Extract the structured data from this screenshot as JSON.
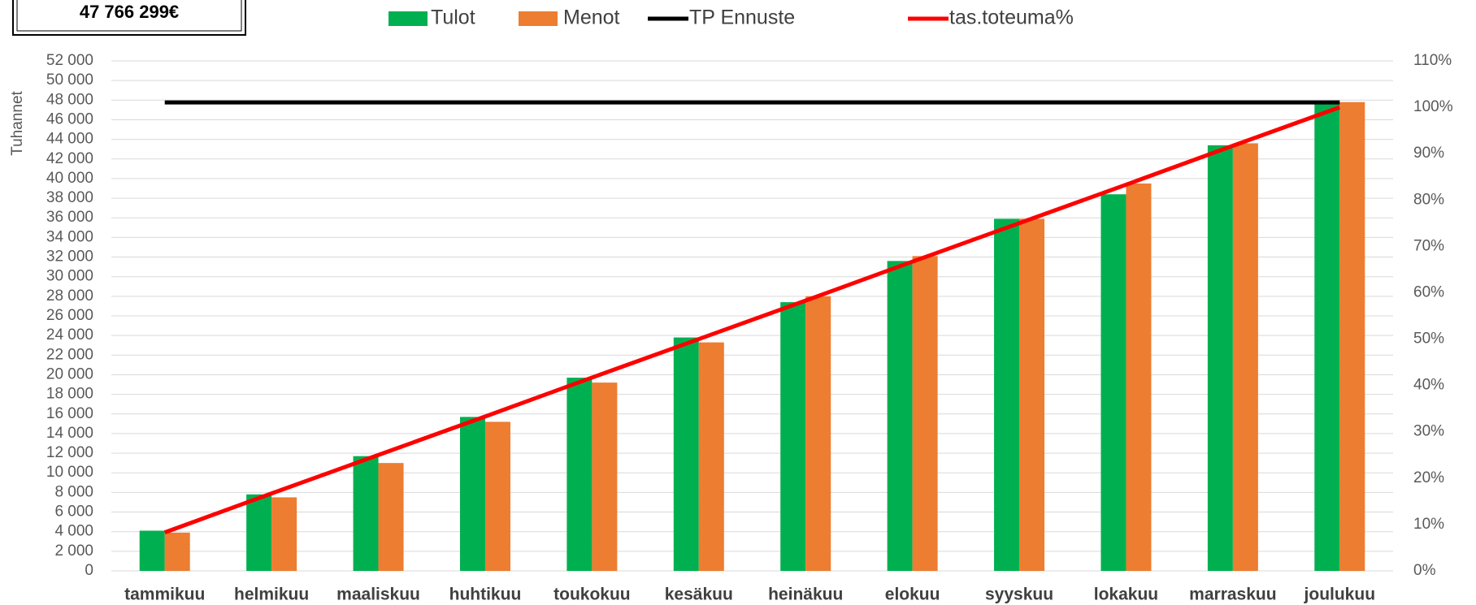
{
  "chart_data": {
    "type": "bar",
    "annotation": "47 766 299€",
    "y_label": "Tuhannet",
    "categories": [
      "tammikuu",
      "helmikuu",
      "maaliskuu",
      "huhtikuu",
      "toukokuu",
      "kesäkuu",
      "heinäkuu",
      "elokuu",
      "syyskuu",
      "lokakuu",
      "marraskuu",
      "joulukuu"
    ],
    "series": [
      {
        "name": "Tulot",
        "type": "bar",
        "color": "#00b050",
        "values": [
          4100,
          7800,
          11700,
          15700,
          19700,
          23800,
          27400,
          31600,
          35900,
          38400,
          43400,
          47800
        ]
      },
      {
        "name": "Menot",
        "type": "bar",
        "color": "#ed7d31",
        "values": [
          3900,
          7500,
          11000,
          15200,
          19200,
          23300,
          28000,
          32100,
          35900,
          39500,
          43600,
          47800
        ]
      },
      {
        "name": "TP Ennuste",
        "type": "line",
        "color": "#000000",
        "values": [
          47766,
          47766,
          47766,
          47766,
          47766,
          47766,
          47766,
          47766,
          47766,
          47766,
          47766,
          47766
        ]
      },
      {
        "name": "tas.toteuma%",
        "type": "line",
        "axis": "y2",
        "color": "#ff0000",
        "values": [
          8.3,
          16.7,
          25,
          33.3,
          41.7,
          50,
          58.3,
          66.7,
          75,
          83.3,
          91.7,
          100
        ]
      }
    ],
    "ylim": [
      0,
      52000
    ],
    "yticks": [
      0,
      {
        "value": 2000,
        "label": "2 000"
      },
      {
        "value": 4000,
        "label": "4 000"
      },
      {
        "value": 6000,
        "label": "6 000"
      },
      {
        "value": 8000,
        "label": "8 000"
      },
      {
        "value": 10000,
        "label": "10 000"
      },
      {
        "value": 12000,
        "label": "12 000"
      },
      {
        "value": 14000,
        "label": "14 000"
      },
      {
        "value": 16000,
        "label": "16 000"
      },
      {
        "value": 18000,
        "label": "18 000"
      },
      {
        "value": 20000,
        "label": "20 000"
      },
      {
        "value": 22000,
        "label": "22 000"
      },
      {
        "value": 24000,
        "label": "24 000"
      },
      {
        "value": 26000,
        "label": "26 000"
      },
      {
        "value": 28000,
        "label": "28 000"
      },
      {
        "value": 30000,
        "label": "30 000"
      },
      {
        "value": 32000,
        "label": "32 000"
      },
      {
        "value": 34000,
        "label": "34 000"
      },
      {
        "value": 36000,
        "label": "36 000"
      },
      {
        "value": 38000,
        "label": "38 000"
      },
      {
        "value": 40000,
        "label": "40 000"
      },
      {
        "value": 42000,
        "label": "42 000"
      },
      {
        "value": 44000,
        "label": "44 000"
      },
      {
        "value": 46000,
        "label": "46 000"
      },
      {
        "value": 48000,
        "label": "48 000"
      },
      {
        "value": 50000,
        "label": "50 000"
      },
      {
        "value": 52000,
        "label": "52 000"
      }
    ],
    "y2lim": [
      0,
      110
    ],
    "y2ticks": [
      {
        "value": 0,
        "label": "0%"
      },
      {
        "value": 10,
        "label": "10%"
      },
      {
        "value": 20,
        "label": "20%"
      },
      {
        "value": 30,
        "label": "30%"
      },
      {
        "value": 40,
        "label": "40%"
      },
      {
        "value": 50,
        "label": "50%"
      },
      {
        "value": 60,
        "label": "60%"
      },
      {
        "value": 70,
        "label": "70%"
      },
      {
        "value": 80,
        "label": "80%"
      },
      {
        "value": 90,
        "label": "90%"
      },
      {
        "value": 100,
        "label": "100%"
      },
      {
        "value": 110,
        "label": "110%"
      }
    ],
    "grid": true,
    "legend": "top"
  }
}
